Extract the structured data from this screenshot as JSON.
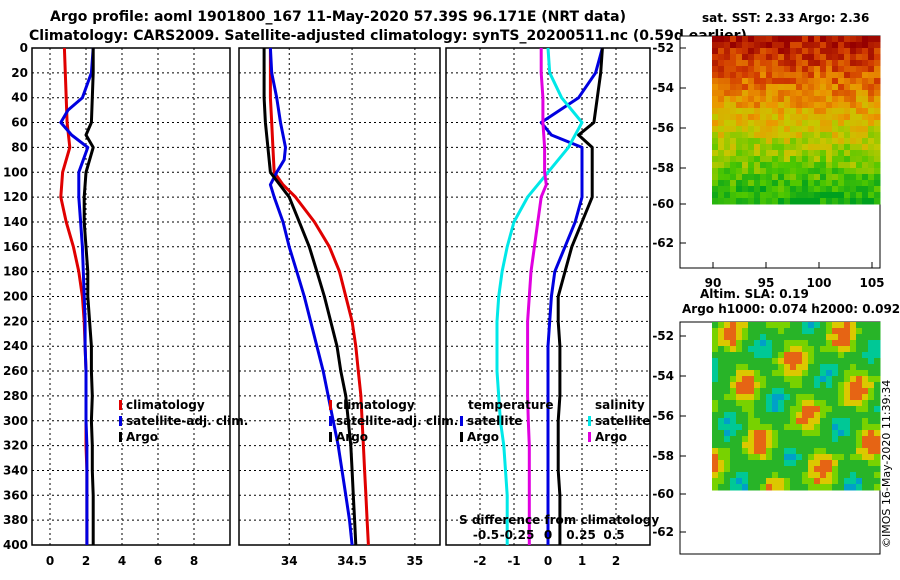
{
  "title_line1": "Argo profile: aoml 1901800_167 11-May-2020 57.39S 96.171E (NRT data)",
  "title_line2": "Climatology: CARS2009. Satellite-adjusted climatology: synTS_20200511.nc (0.59d earlier)",
  "sst_title": "sat. SST: 2.33 Argo: 2.36",
  "sla_title1": "Altim. SLA: 0.19",
  "sla_title2": "Argo h1000: 0.074 h2000: 0.092",
  "credit": "©IMOS 16-May-2020 11:39:34",
  "colors": {
    "climatology": "#e00000",
    "satellite": "#0000e0",
    "argo": "#000000",
    "sat_sal": "#00e8e8",
    "argo_sal": "#e000e0"
  },
  "depth_ticks": [
    "0",
    "20",
    "40",
    "60",
    "80",
    "100",
    "120",
    "140",
    "160",
    "180",
    "200",
    "220",
    "240",
    "260",
    "280",
    "300",
    "320",
    "340",
    "360",
    "380",
    "400"
  ],
  "lat_ticks_sst": [
    "-52",
    "-54",
    "-56",
    "-58",
    "-60",
    "-62"
  ],
  "lon_ticks_sst": [
    "90",
    "95",
    "100",
    "105"
  ],
  "lat_ticks_sla": [
    "-52",
    "-54",
    "-56",
    "-58",
    "-60",
    "-62"
  ],
  "chart_data": [
    {
      "type": "line",
      "id": "temperature",
      "xlim": [
        -1,
        10
      ],
      "ylim": [
        400,
        0
      ],
      "x_ticks": [
        0,
        2,
        4,
        6,
        8
      ],
      "x_tick_labels": [
        "0",
        "2",
        "4",
        "6",
        "8"
      ],
      "legend": [
        "climatology",
        "satellite-adj. clim.",
        "Argo"
      ],
      "series": [
        {
          "name": "climatology",
          "depth": [
            0,
            20,
            40,
            60,
            80,
            100,
            120,
            140,
            160,
            180,
            200,
            220,
            240,
            260,
            280,
            300,
            320,
            340,
            360,
            380,
            400
          ],
          "values": [
            0.8,
            0.85,
            0.9,
            0.95,
            1.1,
            0.7,
            0.6,
            0.9,
            1.3,
            1.6,
            1.8,
            1.9,
            1.95,
            2.0,
            2.0,
            2.0,
            2.0,
            2.05,
            2.05,
            2.05,
            2.05
          ]
        },
        {
          "name": "satellite-adj. clim.",
          "depth": [
            0,
            20,
            40,
            50,
            60,
            70,
            80,
            100,
            120,
            140,
            160,
            180,
            200,
            220,
            240,
            260,
            280,
            300,
            320,
            340,
            360,
            380,
            400
          ],
          "values": [
            2.4,
            2.3,
            1.8,
            1.0,
            0.6,
            1.2,
            2.1,
            1.6,
            1.6,
            1.7,
            1.8,
            1.85,
            1.9,
            1.95,
            1.95,
            2.0,
            2.0,
            2.0,
            2.05,
            2.05,
            2.05,
            2.05,
            2.05
          ]
        },
        {
          "name": "Argo",
          "depth": [
            0,
            20,
            40,
            60,
            70,
            80,
            100,
            120,
            140,
            160,
            180,
            200,
            220,
            240,
            260,
            280,
            300,
            320,
            340,
            360,
            380,
            400
          ],
          "values": [
            2.4,
            2.4,
            2.35,
            2.3,
            2.0,
            2.4,
            2.0,
            1.9,
            1.9,
            2.0,
            2.1,
            2.1,
            2.2,
            2.3,
            2.3,
            2.35,
            2.3,
            2.35,
            2.35,
            2.4,
            2.4,
            2.4
          ]
        }
      ]
    },
    {
      "type": "line",
      "id": "salinity",
      "xlim": [
        33.6,
        35.2
      ],
      "ylim": [
        400,
        0
      ],
      "x_ticks": [
        34,
        34.5,
        35
      ],
      "x_tick_labels": [
        "34",
        "34.5",
        "35"
      ],
      "legend": [
        "climatology",
        "satellite-adj. clim.",
        "Argo"
      ],
      "series": [
        {
          "name": "climatology",
          "depth": [
            0,
            20,
            40,
            60,
            80,
            100,
            110,
            120,
            140,
            160,
            180,
            200,
            220,
            240,
            260,
            280,
            300,
            320,
            340,
            360,
            380,
            400
          ],
          "values": [
            33.85,
            33.85,
            33.85,
            33.86,
            33.87,
            33.88,
            33.95,
            34.05,
            34.2,
            34.32,
            34.4,
            34.45,
            34.5,
            34.53,
            34.55,
            34.57,
            34.58,
            34.59,
            34.6,
            34.61,
            34.62,
            34.63
          ]
        },
        {
          "name": "satellite-adj. clim.",
          "depth": [
            0,
            20,
            40,
            60,
            80,
            90,
            100,
            110,
            120,
            140,
            160,
            180,
            200,
            220,
            240,
            260,
            280,
            300,
            320,
            340,
            360,
            380,
            400
          ],
          "values": [
            33.85,
            33.86,
            33.9,
            33.93,
            33.97,
            33.96,
            33.9,
            33.85,
            33.88,
            33.95,
            34.0,
            34.06,
            34.12,
            34.17,
            34.22,
            34.27,
            34.31,
            34.35,
            34.39,
            34.42,
            34.45,
            34.48,
            34.5
          ]
        },
        {
          "name": "Argo",
          "depth": [
            0,
            20,
            40,
            60,
            80,
            100,
            120,
            140,
            160,
            180,
            200,
            220,
            240,
            260,
            280,
            300,
            320,
            340,
            360,
            380,
            400
          ],
          "values": [
            33.8,
            33.8,
            33.8,
            33.81,
            33.83,
            33.85,
            34.0,
            34.08,
            34.16,
            34.22,
            34.28,
            34.33,
            34.38,
            34.41,
            34.45,
            34.47,
            34.49,
            34.5,
            34.51,
            34.52,
            34.53
          ]
        }
      ]
    },
    {
      "type": "line",
      "id": "difference",
      "xlim": [
        -3,
        3
      ],
      "ylim": [
        400,
        0
      ],
      "x_ticks": [
        -2,
        -1,
        0,
        1,
        2
      ],
      "x_tick_labels": [
        "-2",
        "-1",
        "0",
        "1",
        "2"
      ],
      "secondary_x_tick_labels": [
        "-0.5",
        "-0.25",
        "0",
        "0.25",
        "0.5"
      ],
      "secondary_xlabel": "S difference from climatology",
      "legend_temperature": [
        "temperature",
        "satellite",
        "Argo"
      ],
      "legend_salinity": [
        "salinity",
        "satellite",
        "Argo"
      ],
      "series": [
        {
          "name": "temperature satellite",
          "depth": [
            0,
            20,
            40,
            60,
            70,
            80,
            100,
            120,
            140,
            160,
            180,
            200,
            220,
            240,
            260,
            280,
            300,
            320,
            340,
            360,
            380,
            400
          ],
          "values": [
            1.6,
            1.4,
            0.9,
            -0.2,
            0.1,
            1.0,
            1.0,
            1.0,
            0.8,
            0.5,
            0.2,
            0.1,
            0.05,
            0.0,
            0.0,
            0.0,
            0.0,
            0.0,
            0.0,
            0.0,
            0.0,
            0.0
          ]
        },
        {
          "name": "temperature Argo",
          "depth": [
            0,
            20,
            40,
            60,
            70,
            80,
            100,
            120,
            140,
            160,
            180,
            200,
            220,
            240,
            260,
            280,
            300,
            320,
            340,
            360,
            380,
            400
          ],
          "values": [
            1.6,
            1.55,
            1.45,
            1.35,
            0.9,
            1.3,
            1.3,
            1.3,
            1.0,
            0.7,
            0.5,
            0.3,
            0.3,
            0.35,
            0.35,
            0.35,
            0.3,
            0.3,
            0.3,
            0.35,
            0.35,
            0.35
          ]
        },
        {
          "name": "salinity satellite",
          "depth": [
            0,
            20,
            40,
            60,
            80,
            100,
            110,
            120,
            140,
            160,
            180,
            200,
            220,
            240,
            260,
            280,
            300,
            320,
            340,
            360,
            380,
            400
          ],
          "values": [
            0.0,
            0.05,
            0.4,
            1.0,
            0.6,
            0.0,
            -0.3,
            -0.6,
            -1.0,
            -1.2,
            -1.35,
            -1.45,
            -1.5,
            -1.5,
            -1.5,
            -1.45,
            -1.4,
            -1.3,
            -1.25,
            -1.2,
            -1.2,
            -1.2
          ]
        },
        {
          "name": "salinity Argo",
          "depth": [
            0,
            20,
            40,
            60,
            80,
            100,
            110,
            120,
            140,
            160,
            180,
            200,
            220,
            240,
            260,
            280,
            300,
            320,
            340,
            360,
            380,
            400
          ],
          "values": [
            -0.2,
            -0.2,
            -0.15,
            -0.15,
            -0.1,
            -0.1,
            -0.05,
            -0.2,
            -0.3,
            -0.4,
            -0.5,
            -0.55,
            -0.6,
            -0.6,
            -0.6,
            -0.6,
            -0.58,
            -0.55,
            -0.55,
            -0.55,
            -0.55,
            -0.55
          ]
        }
      ]
    }
  ]
}
